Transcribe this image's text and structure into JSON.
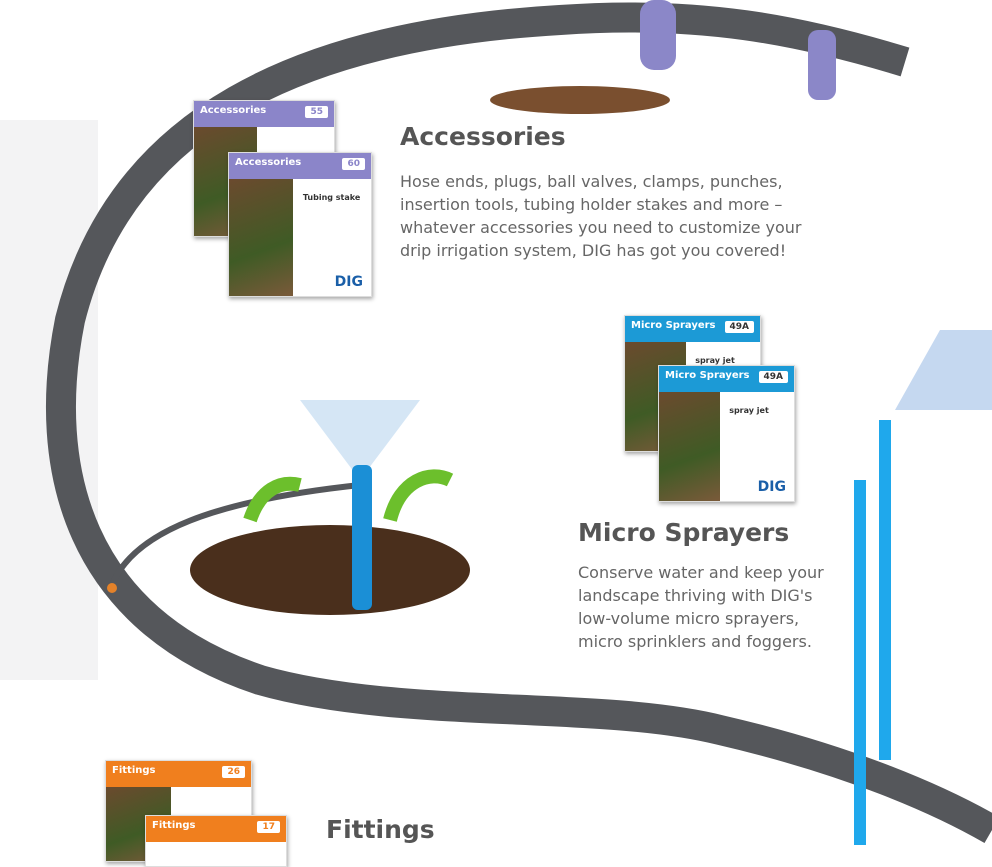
{
  "sections": [
    {
      "title": "Accessories",
      "text": "Hose ends, plugs, ball valves, clamps, punches, insertion tools, tubing holder stakes and more –whatever accessories you need to customize your drip irrigation system, DIG has got you covered!"
    },
    {
      "title": "Micro Sprayers",
      "text": "Conserve water and keep your landscape thriving with DIG's low-volume micro sprayers, micro sprinklers and foggers."
    },
    {
      "title": "Fittings"
    }
  ],
  "cards": [
    {
      "label": "Accessories",
      "number": "55"
    },
    {
      "label": "Accessories",
      "number": "60",
      "product": "Tubing stake",
      "brand": "DIG"
    },
    {
      "label": "Micro Sprayers",
      "number": "49A",
      "product": "spray jet"
    },
    {
      "label": "Micro Sprayers",
      "number": "49A",
      "product": "spray jet",
      "brand": "DIG"
    },
    {
      "label": "Fittings",
      "number": "26"
    },
    {
      "label": "Fittings",
      "number": "17"
    }
  ]
}
